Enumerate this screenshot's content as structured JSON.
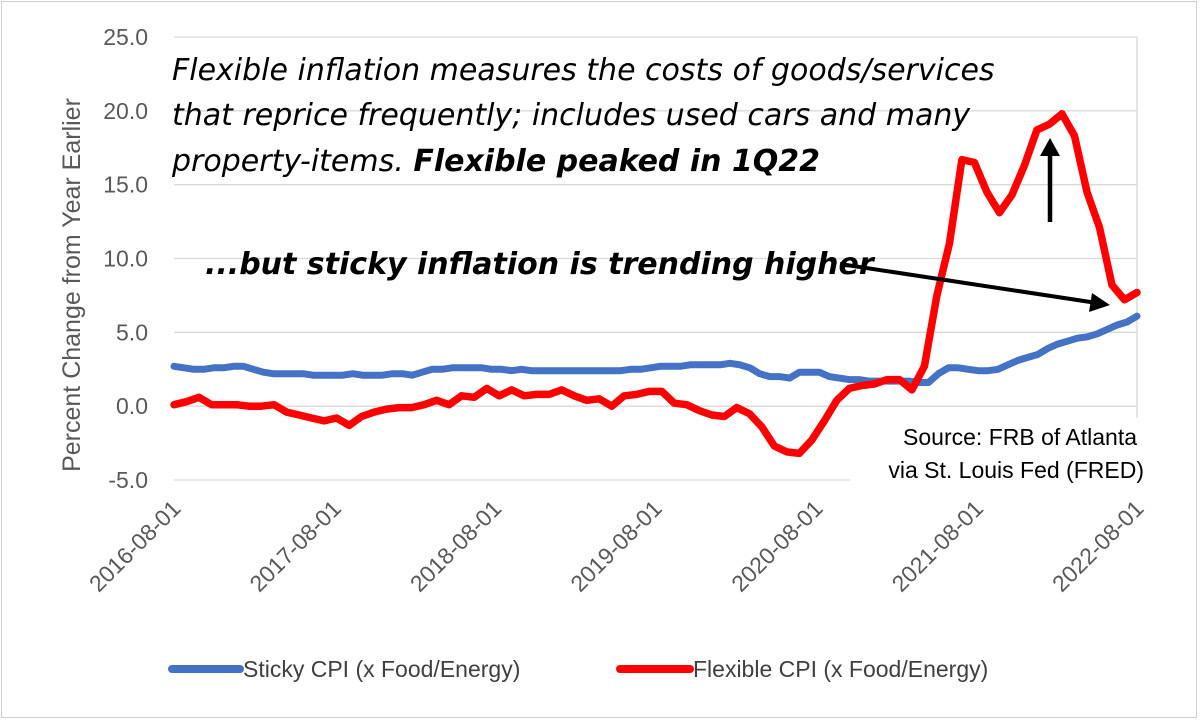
{
  "chart_data": {
    "type": "line",
    "ylabel": "Percent Change from Year Earlier",
    "ylim": [
      -5,
      25
    ],
    "yticks": [
      "-5.0",
      "0.0",
      "5.0",
      "10.0",
      "15.0",
      "20.0",
      "25.0"
    ],
    "xtick_labels": [
      "2016-08-01",
      "2017-08-01",
      "2018-08-01",
      "2019-08-01",
      "2020-08-01",
      "2021-08-01",
      "2022-08-01"
    ],
    "x_start": "2016-08-01",
    "x_end": "2022-08-01",
    "grid": true,
    "legend_position": "bottom",
    "series": [
      {
        "name": "Sticky CPI (x Food/Energy)",
        "color": "#4472C4",
        "values": [
          2.7,
          2.6,
          2.5,
          2.5,
          2.6,
          2.6,
          2.7,
          2.7,
          2.5,
          2.3,
          2.2,
          2.2,
          2.2,
          2.2,
          2.1,
          2.1,
          2.1,
          2.1,
          2.2,
          2.1,
          2.1,
          2.1,
          2.2,
          2.2,
          2.1,
          2.3,
          2.5,
          2.5,
          2.6,
          2.6,
          2.6,
          2.6,
          2.5,
          2.5,
          2.4,
          2.5,
          2.4,
          2.4,
          2.4,
          2.4,
          2.4,
          2.4,
          2.4,
          2.4,
          2.4,
          2.4,
          2.5,
          2.5,
          2.6,
          2.7,
          2.7,
          2.7,
          2.8,
          2.8,
          2.8,
          2.8,
          2.9,
          2.8,
          2.6,
          2.2,
          2.0,
          2.0,
          1.9,
          2.3,
          2.3,
          2.3,
          2.0,
          1.9,
          1.8,
          1.8,
          1.7,
          1.7,
          1.7,
          1.7,
          1.7,
          1.6,
          1.6,
          2.2,
          2.6,
          2.6,
          2.5,
          2.4,
          2.4,
          2.5,
          2.8,
          3.1,
          3.3,
          3.5,
          3.9,
          4.2,
          4.4,
          4.6,
          4.7,
          4.9,
          5.2,
          5.5,
          5.7,
          6.1
        ]
      },
      {
        "name": "Flexible CPI (x Food/Energy)",
        "color": "#FF0000",
        "values": [
          0.1,
          0.3,
          0.6,
          0.1,
          0.1,
          0.1,
          0.0,
          0.0,
          0.1,
          -0.4,
          -0.6,
          -0.8,
          -1.0,
          -0.8,
          -1.3,
          -0.7,
          -0.4,
          -0.2,
          -0.1,
          -0.1,
          0.1,
          0.4,
          0.1,
          0.7,
          0.6,
          1.2,
          0.7,
          1.1,
          0.7,
          0.8,
          0.8,
          1.1,
          0.7,
          0.4,
          0.5,
          0.0,
          0.7,
          0.8,
          1.0,
          1.0,
          0.2,
          0.1,
          -0.3,
          -0.6,
          -0.7,
          -0.1,
          -0.5,
          -1.4,
          -2.7,
          -3.1,
          -3.2,
          -2.3,
          -1.0,
          0.4,
          1.2,
          1.4,
          1.5,
          1.8,
          1.8,
          1.1,
          2.7,
          7.5,
          11.0,
          16.7,
          16.5,
          14.5,
          13.1,
          14.3,
          16.3,
          18.7,
          19.1,
          19.8,
          18.3,
          14.5,
          12.1,
          8.2,
          7.2,
          7.7
        ]
      }
    ],
    "annotations": {
      "line1": "Flexible inflation measures the costs of goods/services",
      "line2": "that reprice frequently; includes used cars and many",
      "line3_regular": "property-items. ",
      "line3_bold": "Flexible peaked in 1Q22",
      "sticky_note": "...but sticky inflation is trending higher",
      "source_line1": "Source: FRB of Atlanta",
      "source_line2": "via St. Louis Fed (FRED)"
    }
  },
  "colors": {
    "sticky": "#4472C4",
    "flexible": "#FF0000",
    "grid": "#D9D9D9",
    "axis_text": "#595959"
  }
}
